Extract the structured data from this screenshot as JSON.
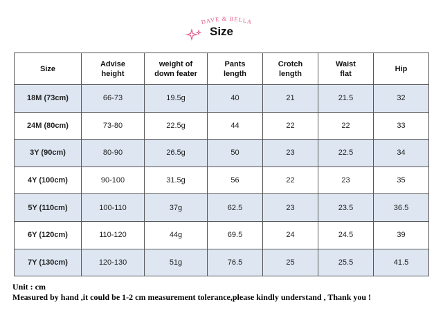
{
  "brand": {
    "name": "DAVE & BELLA",
    "color": "#e05a86"
  },
  "title": "Size",
  "table": {
    "headers": [
      [
        "Size"
      ],
      [
        "Advise",
        "height"
      ],
      [
        "weight of",
        "down feater"
      ],
      [
        "Pants",
        "length"
      ],
      [
        "Crotch",
        "length"
      ],
      [
        "Waist",
        "flat"
      ],
      [
        "Hip"
      ]
    ],
    "rows": [
      [
        "18M (73cm)",
        "66-73",
        "19.5g",
        "40",
        "21",
        "21.5",
        "32"
      ],
      [
        "24M (80cm)",
        "73-80",
        "22.5g",
        "44",
        "22",
        "22",
        "33"
      ],
      [
        "3Y (90cm)",
        "80-90",
        "26.5g",
        "50",
        "23",
        "22.5",
        "34"
      ],
      [
        "4Y (100cm)",
        "90-100",
        "31.5g",
        "56",
        "22",
        "23",
        "35"
      ],
      [
        "5Y (110cm)",
        "100-110",
        "37g",
        "62.5",
        "23",
        "23.5",
        "36.5"
      ],
      [
        "6Y (120cm)",
        "110-120",
        "44g",
        "69.5",
        "24",
        "24.5",
        "39"
      ],
      [
        "7Y (130cm)",
        "120-130",
        "51g",
        "76.5",
        "25",
        "25.5",
        "41.5"
      ]
    ],
    "alt_row_color": "#dde6f1"
  },
  "notes": {
    "unit": "Unit : cm",
    "measure": "Measured by hand ,it could be 1-2 cm measurement tolerance,please kindly understand , Thank you !"
  },
  "icons": {
    "title_decoration": "sparkle-icon"
  }
}
